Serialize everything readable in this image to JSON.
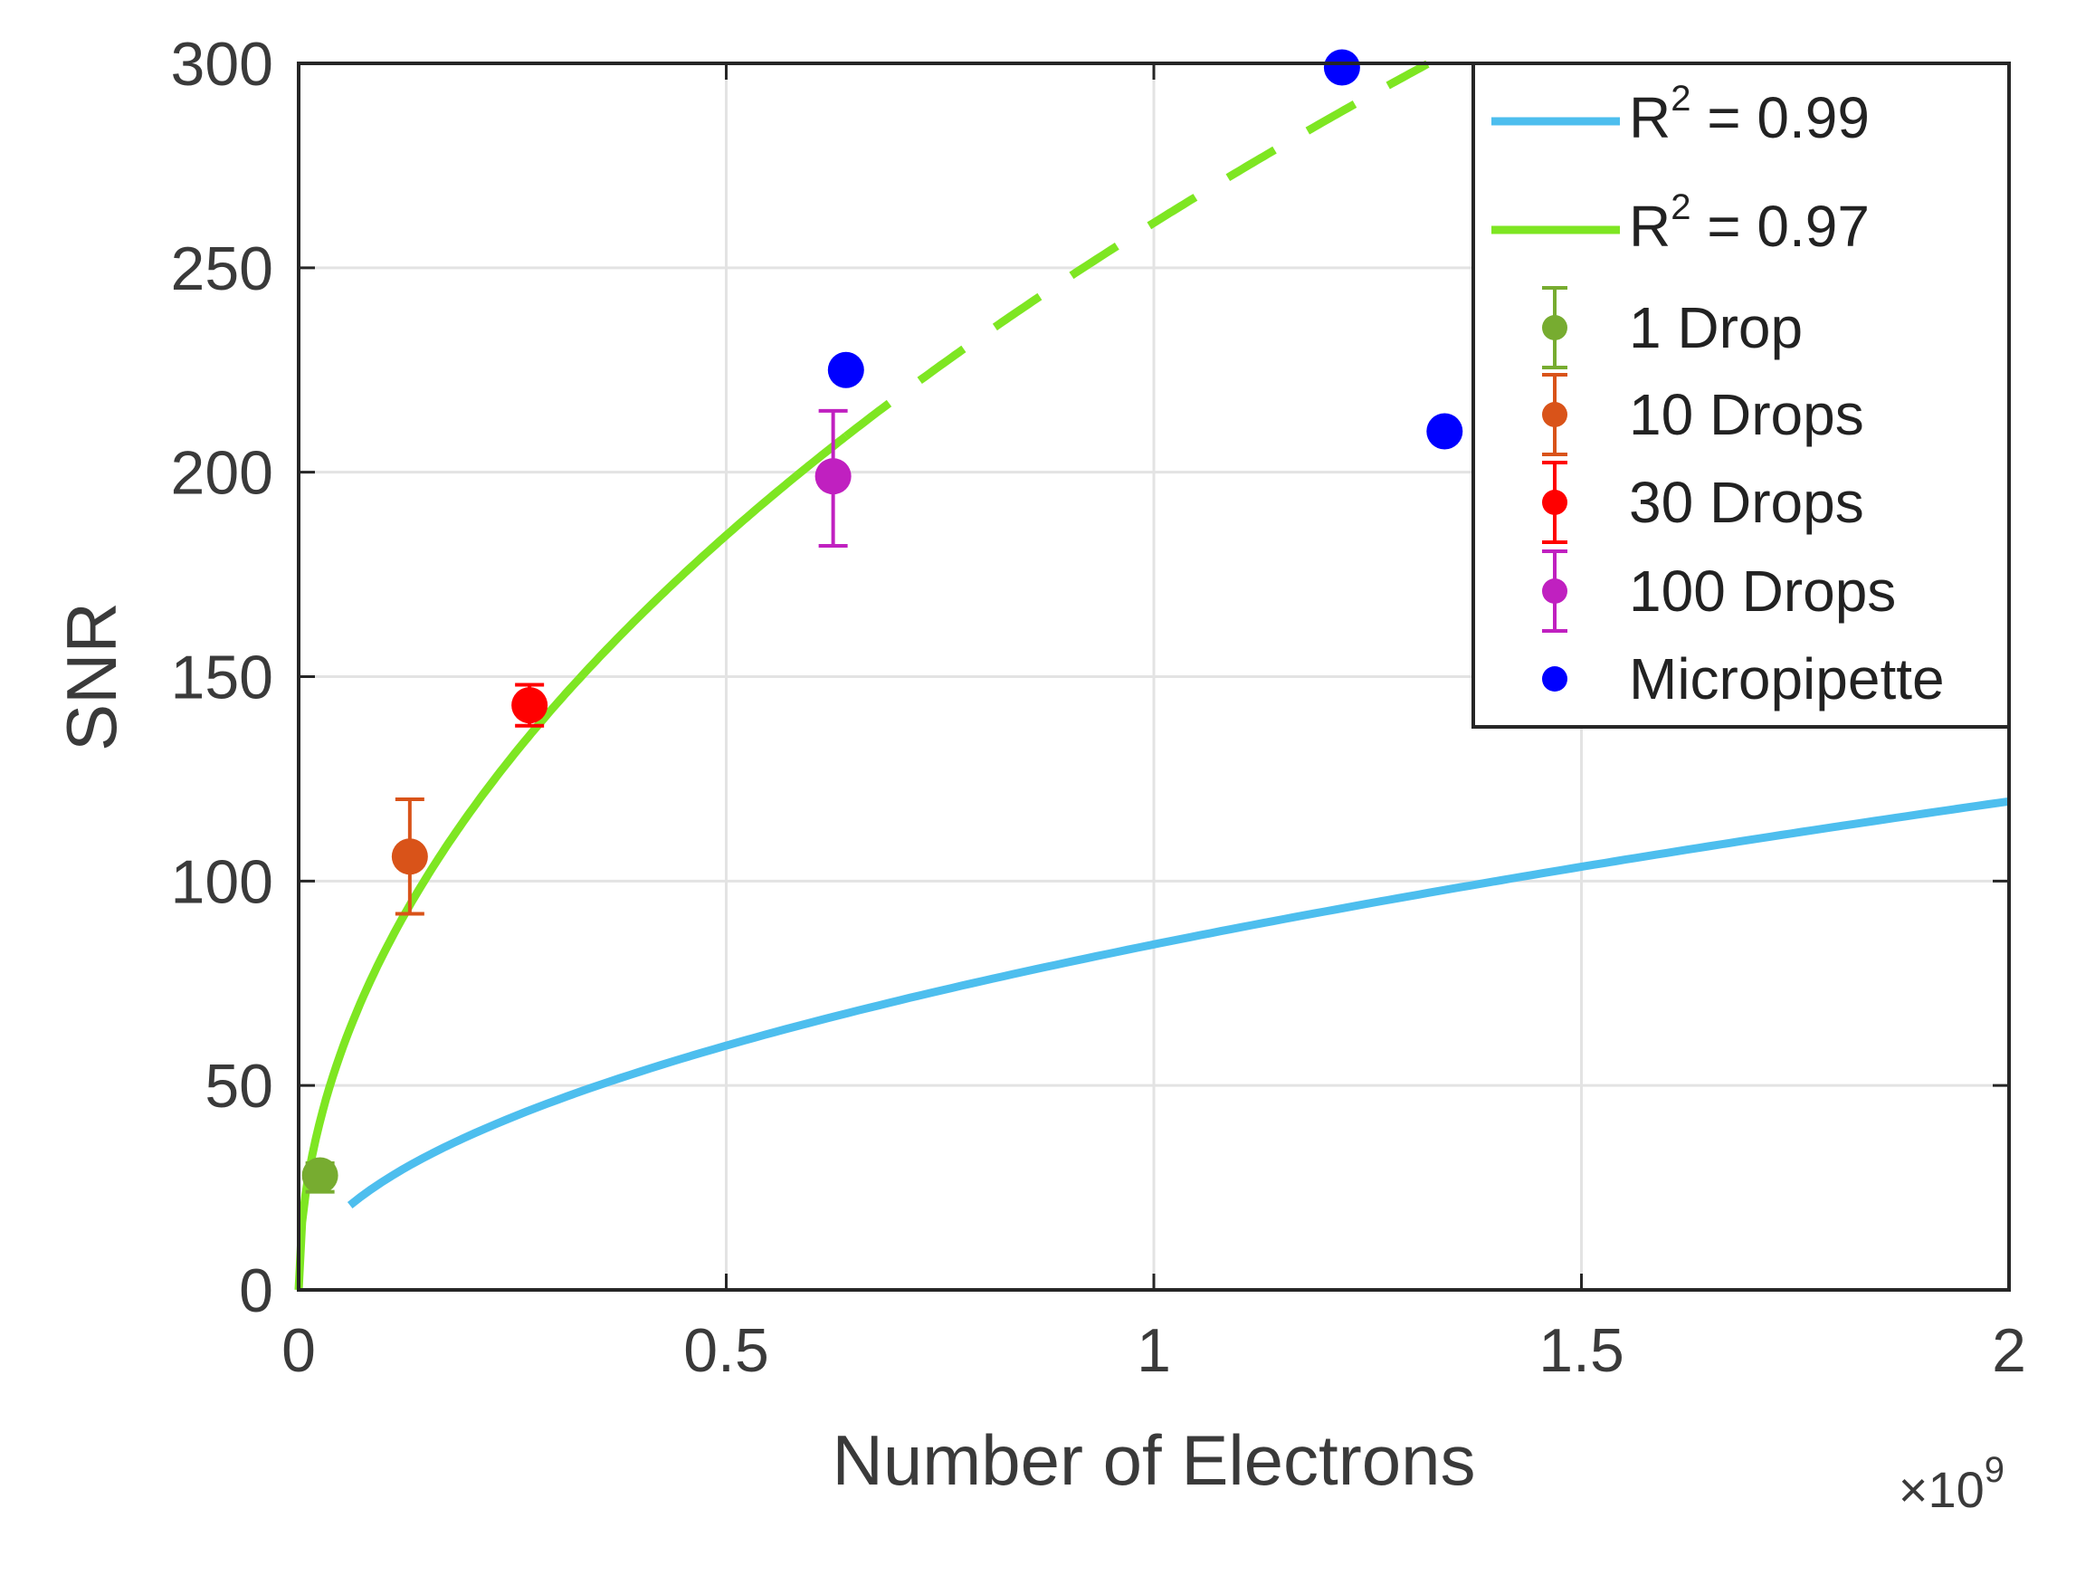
{
  "chart_data": {
    "type": "scatter",
    "xlabel": "Number of Electrons",
    "ylabel": "SNR",
    "x_multiplier_label": "×10",
    "x_multiplier_exponent": "9",
    "xlim": [
      0,
      2
    ],
    "ylim": [
      0,
      300
    ],
    "grid": true,
    "legend_position": "top-right",
    "x_ticks": [
      0,
      0.5,
      1,
      1.5,
      2
    ],
    "x_tick_labels": [
      "0",
      "0.5",
      "1",
      "1.5",
      "2"
    ],
    "y_ticks": [
      0,
      50,
      100,
      150,
      200,
      250,
      300
    ],
    "y_tick_labels": [
      "0",
      "50",
      "100",
      "150",
      "200",
      "250",
      "300"
    ],
    "fits": [
      {
        "name": "fit-099",
        "legend_prefix": "R",
        "legend_exponent": "2",
        "legend_suffix": " = 0.99",
        "color": "#4dbeee",
        "style": "solid",
        "coefficient": 84.5,
        "exponent": 0.5,
        "x_start": 0.06,
        "x_end": 2.0
      },
      {
        "name": "fit-097",
        "legend_prefix": "R",
        "legend_exponent": "2",
        "legend_suffix": " = 0.97",
        "color": "#7ee622",
        "style": "solid-then-dashed",
        "coefficient": 261,
        "exponent": 0.5,
        "x_start": 0.0,
        "x_solid_end": 0.64,
        "x_end": 1.32
      }
    ],
    "series": [
      {
        "name": "1 Drop",
        "color": "#77ac30",
        "points": [
          {
            "x": 0.025,
            "y": 28,
            "err_low": 24,
            "err_high": 31
          }
        ]
      },
      {
        "name": "10 Drops",
        "color": "#d95319",
        "points": [
          {
            "x": 0.13,
            "y": 106,
            "err_low": 92,
            "err_high": 120
          }
        ]
      },
      {
        "name": "30 Drops",
        "color": "#ff0000",
        "points": [
          {
            "x": 0.27,
            "y": 143,
            "err_low": 138,
            "err_high": 148
          }
        ]
      },
      {
        "name": "100 Drops",
        "color": "#c020c0",
        "points": [
          {
            "x": 0.625,
            "y": 199,
            "err_low": 182,
            "err_high": 215
          }
        ]
      },
      {
        "name": "Micropipette",
        "color": "#0000ff",
        "points": [
          {
            "x": 0.64,
            "y": 225
          },
          {
            "x": 1.22,
            "y": 299
          },
          {
            "x": 1.34,
            "y": 210
          }
        ]
      }
    ]
  }
}
